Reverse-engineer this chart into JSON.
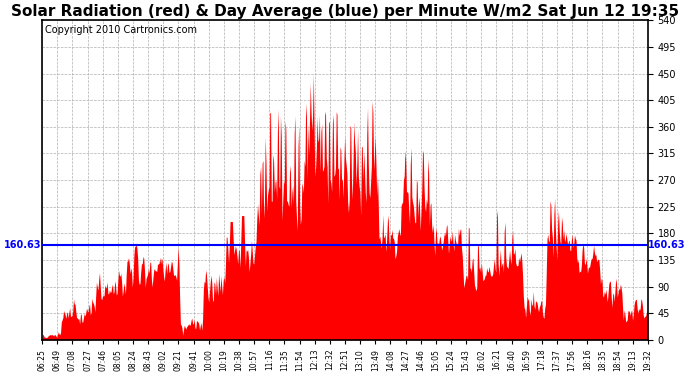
{
  "title": "Solar Radiation (red) & Day Average (blue) per Minute W/m2 Sat Jun 12 19:35",
  "copyright": "Copyright 2010 Cartronics.com",
  "ylim": [
    0,
    540
  ],
  "yticks": [
    0,
    45,
    90,
    135,
    180,
    225,
    270,
    315,
    360,
    405,
    450,
    495,
    540
  ],
  "day_average": 160.63,
  "fill_color": "#ff0000",
  "avg_line_color": "#0000ff",
  "background_color": "#ffffff",
  "grid_color": "#b0b0b0",
  "title_fontsize": 11,
  "copyright_fontsize": 7,
  "x_labels": [
    "06:25",
    "06:49",
    "07:08",
    "07:27",
    "07:46",
    "08:05",
    "08:24",
    "08:43",
    "09:02",
    "09:21",
    "09:41",
    "10:00",
    "10:19",
    "10:38",
    "10:57",
    "11:16",
    "11:35",
    "11:54",
    "12:13",
    "12:32",
    "12:51",
    "13:10",
    "13:49",
    "14:08",
    "14:27",
    "14:46",
    "15:05",
    "15:24",
    "15:43",
    "16:02",
    "16:21",
    "16:40",
    "16:59",
    "17:18",
    "17:37",
    "17:56",
    "18:16",
    "18:35",
    "18:54",
    "19:13",
    "19:32"
  ]
}
